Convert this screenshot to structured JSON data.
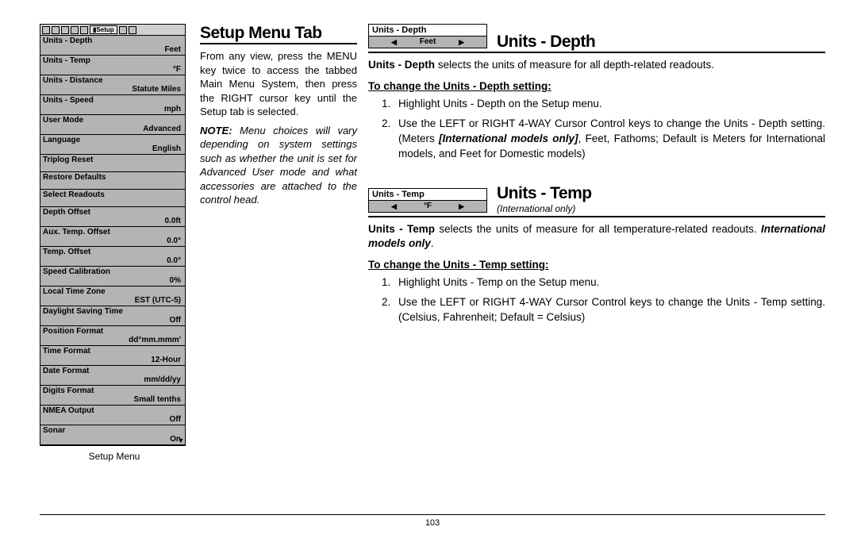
{
  "page_number": "103",
  "device": {
    "header_active_tab": "Setup",
    "caption": "Setup Menu",
    "rows": [
      {
        "label": "Units - Depth",
        "value": "Feet"
      },
      {
        "label": "Units - Temp",
        "value": "°F"
      },
      {
        "label": "Units - Distance",
        "value": "Statute Miles"
      },
      {
        "label": "Units - Speed",
        "value": "mph"
      },
      {
        "label": "User Mode",
        "value": "Advanced"
      },
      {
        "label": "Language",
        "value": "English"
      },
      {
        "label": "Triplog Reset",
        "value": ""
      },
      {
        "label": "Restore Defaults",
        "value": ""
      },
      {
        "label": "Select Readouts",
        "value": ""
      },
      {
        "label": "Depth Offset",
        "value": "0.0ft"
      },
      {
        "label": "Aux. Temp. Offset",
        "value": "0.0°"
      },
      {
        "label": "Temp. Offset",
        "value": "0.0°"
      },
      {
        "label": "Speed Calibration",
        "value": "0%"
      },
      {
        "label": "Local Time Zone",
        "value": "EST (UTC-5)"
      },
      {
        "label": "Daylight Saving Time",
        "value": "Off"
      },
      {
        "label": "Position Format",
        "value": "dd°mm.mmm'"
      },
      {
        "label": "Time Format",
        "value": "12-Hour"
      },
      {
        "label": "Date Format",
        "value": "mm/dd/yy"
      },
      {
        "label": "Digits Format",
        "value": "Small tenths"
      },
      {
        "label": "NMEA Output",
        "value": "Off"
      },
      {
        "label": "Sonar",
        "value": "On"
      }
    ]
  },
  "mid": {
    "title": "Setup Menu Tab",
    "para": "From any view, press the MENU key twice to access the tabbed Main Menu System, then press the RIGHT cursor key until the Setup tab is selected.",
    "note_prefix": "NOTE:",
    "note": " Menu choices will vary depending on system settings such as whether the unit is set for Advanced User mode and what accessories are attached to the control head."
  },
  "sections": [
    {
      "widget_title": "Units - Depth",
      "widget_value": "Feet",
      "heading": "Units - Depth",
      "heading_note": "",
      "intro_bold": "Units - Depth",
      "intro_rest": " selects the units of measure for all depth-related readouts.",
      "instr_head": "To change the Units - Depth setting:",
      "steps": [
        "Highlight Units - Depth on the Setup menu.",
        "Use the LEFT or RIGHT 4-WAY Cursor Control keys to change the Units - Depth setting. (Meters <span class='bi'>[International models only]</span>, Feet, Fathoms; Default is Meters for International models, and Feet for Domestic models)"
      ]
    },
    {
      "widget_title": "Units - Temp",
      "widget_value": "°F",
      "heading": "Units - Temp",
      "heading_note": "(International only)",
      "intro_bold": "Units - Temp",
      "intro_rest": " selects the units of measure for all temperature-related readouts. <span class='bi'>International models only</span>.",
      "instr_head": "To change the Units - Temp setting:",
      "steps": [
        "Highlight Units - Temp on the Setup menu.",
        "Use the LEFT or RIGHT 4-WAY Cursor Control keys to change the Units - Temp setting. (Celsius, Fahrenheit; Default = Celsius)"
      ]
    }
  ]
}
